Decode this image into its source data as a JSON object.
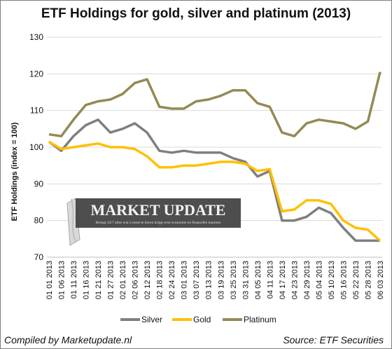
{
  "chart_data": {
    "type": "line",
    "title": "ETF Holdings for gold, silver and platinum (2013)",
    "ylabel": "ETF Holdings (index = 100)",
    "xlabel": "",
    "ylim": [
      70,
      130
    ],
    "yticks": [
      70,
      80,
      90,
      100,
      110,
      120,
      130
    ],
    "grid": "horizontal",
    "legend_position": "bottom",
    "categories": [
      "01 01 2013",
      "01 06 2013",
      "01 11 2013",
      "01 16 2013",
      "01 21 2013",
      "01 27 2013",
      "02 01 2013",
      "02 06 2013",
      "02 12 2013",
      "02 18 2013",
      "02 24 2013",
      "03 01 2013",
      "03 07 2013",
      "03 13 2013",
      "03 19 2013",
      "03 25 2013",
      "03 31 2013",
      "04 05 2013",
      "04 11 2013",
      "04 17 2013",
      "04 23 2013",
      "04 29 2013",
      "05 04 2013",
      "05 10 2013",
      "05 16 2013",
      "05 22 2013",
      "05 28 2013",
      "06 03 2013"
    ],
    "series": [
      {
        "name": "Silver",
        "color": "#7f7f7f",
        "values": [
          101.5,
          99,
          103,
          106,
          107.5,
          104,
          105,
          106.5,
          104,
          99,
          98.5,
          99,
          98.5,
          98.5,
          98.5,
          97,
          96,
          92,
          93.5,
          80,
          80,
          81,
          83.5,
          82,
          78,
          74.5,
          74.5,
          74.5
        ]
      },
      {
        "name": "Gold",
        "color": "#ffc000",
        "values": [
          101.5,
          99.5,
          100,
          100.5,
          101,
          100,
          100,
          99.5,
          97.5,
          94.5,
          94.5,
          95,
          95,
          95.5,
          96,
          96,
          95.5,
          93.5,
          94,
          82.5,
          83,
          85.5,
          85.5,
          84.5,
          80,
          78,
          77.5,
          74.5
        ]
      },
      {
        "name": "Platinum",
        "color": "#948a54",
        "values": [
          103.5,
          103,
          107.5,
          111.5,
          112.5,
          113,
          114.5,
          117.5,
          118.5,
          111,
          110.5,
          110.5,
          112.5,
          113,
          114,
          115.5,
          115.5,
          112,
          111,
          104,
          103,
          106.5,
          107.5,
          107,
          106.5,
          105,
          107,
          120.5
        ]
      }
    ]
  },
  "footer": {
    "left": "Compiled by Marketupdate.nl",
    "right": "Source: ETF Securities"
  },
  "watermark": {
    "title": "MARKET UPDATE",
    "tagline": "Brengt 24/7 alles wat u moet te horen krijgt over economie en financiële markten"
  }
}
